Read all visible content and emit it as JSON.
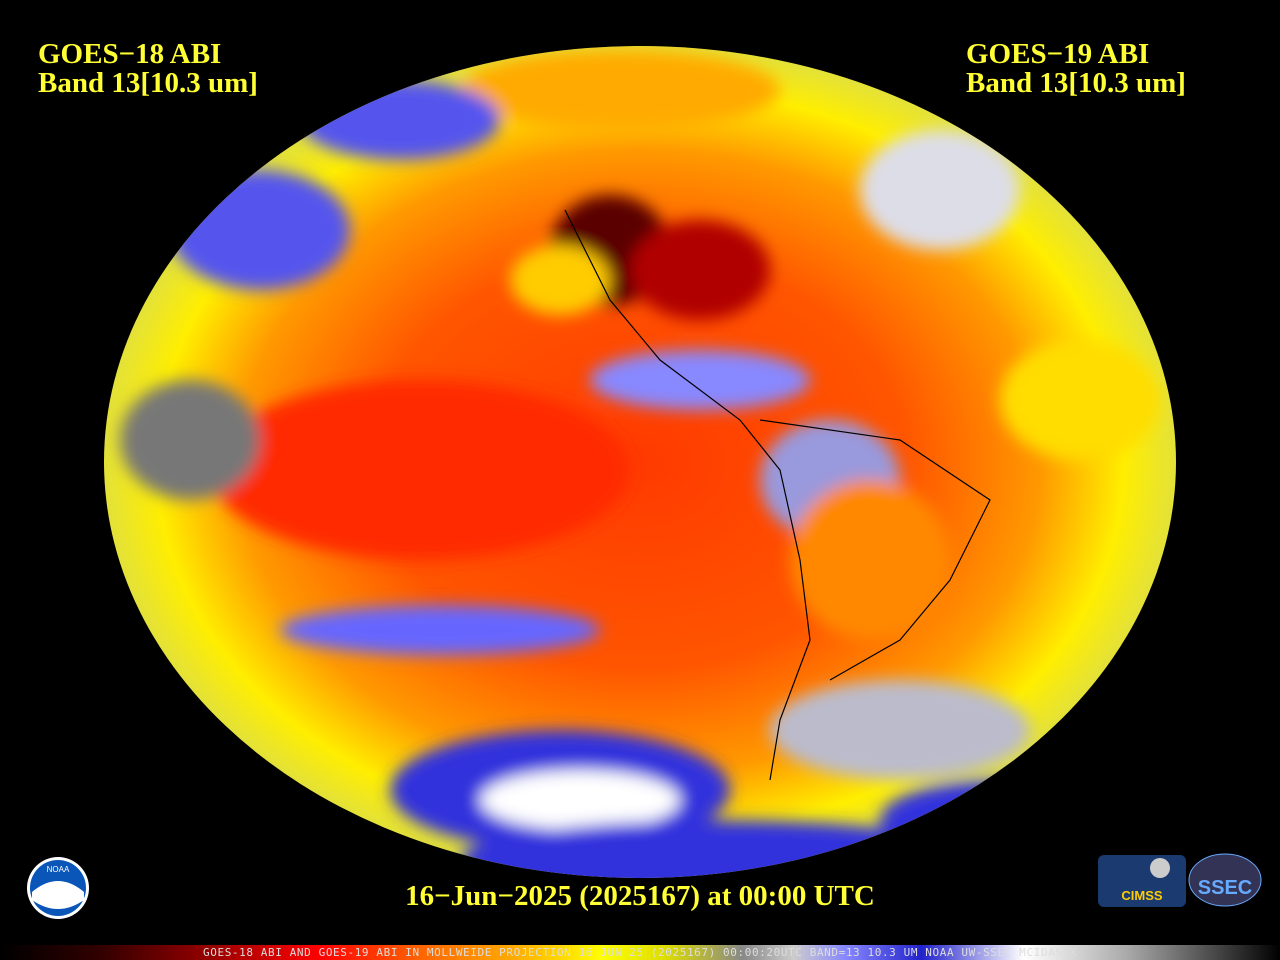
{
  "left_label": [
    "GOES−18 ABI",
    "Band 13[10.3 um]"
  ],
  "right_label": [
    "GOES−19 ABI",
    "Band 13[10.3 um]"
  ],
  "timestamp": "16−Jun−2025 (2025167) at 00:00 UTC",
  "caption": "GOES-18 ABI AND GOES-19 ABI IN MOLLWEIDE PROJECTION 16 JUN 25 (2025167) 00:00:20UTC BAND=13 10.3 UM NOAA UW-SSEC MCIDAS-X",
  "logos": {
    "noaa": "NOAA",
    "cimss": "CIMSS",
    "ssec": "SSEC"
  }
}
